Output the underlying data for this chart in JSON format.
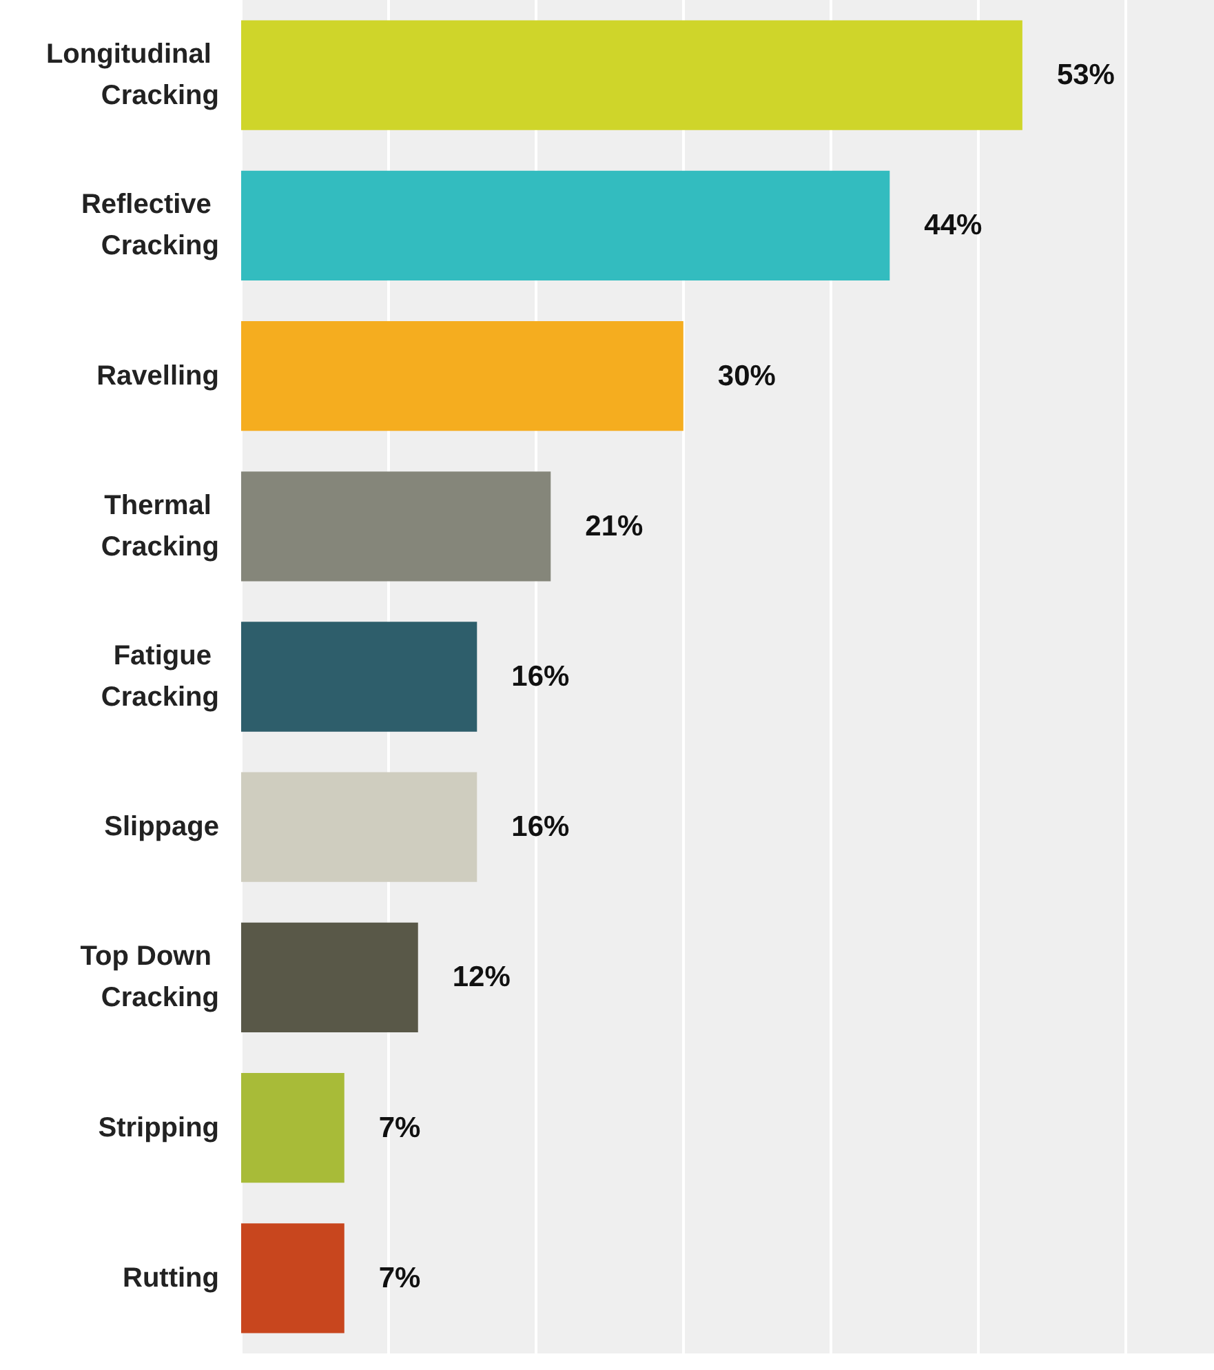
{
  "chart_data": {
    "type": "bar",
    "orientation": "horizontal",
    "categories": [
      "Longitudinal Cracking",
      "Reflective Cracking",
      "Ravelling",
      "Thermal Cracking",
      "Fatigue Cracking",
      "Slippage",
      "Top Down Cracking",
      "Stripping",
      "Rutting"
    ],
    "values": [
      53,
      44,
      30,
      21,
      16,
      16,
      12,
      7,
      7
    ],
    "value_labels": [
      "53%",
      "44%",
      "30%",
      "21%",
      "16%",
      "16%",
      "12%",
      "7%",
      "7%"
    ],
    "colors": [
      "#cfd52a",
      "#33bcbf",
      "#f5ad1f",
      "#85867a",
      "#2e5e6b",
      "#cfcdbf",
      "#595848",
      "#a8bb38",
      "#c8461e"
    ],
    "xlim": [
      0,
      66
    ],
    "xticks": [
      {
        "value": 0,
        "label": null
      },
      {
        "value": 10,
        "label": null
      },
      {
        "value": 20,
        "label": null
      },
      {
        "value": 30,
        "label": null
      },
      {
        "value": 40,
        "label": null
      },
      {
        "value": 50,
        "label": null
      },
      {
        "value": 60,
        "label": null
      }
    ],
    "grid": "x",
    "tick_labels": "y"
  }
}
